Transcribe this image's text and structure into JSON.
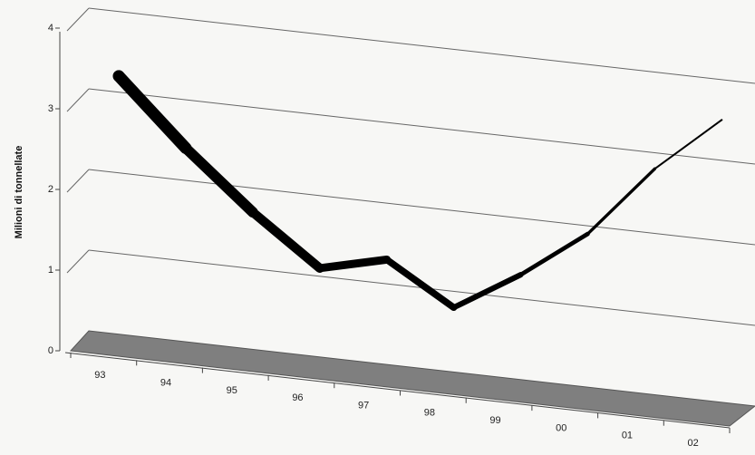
{
  "chart_data": {
    "type": "line",
    "style": "3d-perspective",
    "ylabel": "Milioni di tonnellate",
    "xlabel": "",
    "ylim": [
      0,
      4
    ],
    "yticks": [
      "0",
      "1",
      "2",
      "3",
      "4"
    ],
    "categories": [
      "93",
      "94",
      "95",
      "96",
      "97",
      "98",
      "99",
      "00",
      "01",
      "02"
    ],
    "values": [
      3.2,
      2.4,
      1.7,
      1.1,
      1.3,
      0.8,
      1.3,
      1.9,
      2.8,
      3.5
    ],
    "line_thickness_trend": "thick-to-thin",
    "grid": true,
    "colors": {
      "line": "#000000",
      "floor": "#7f7f7f",
      "gridline": "#666666",
      "axis": "#444444",
      "background": "#f7f7f5"
    }
  }
}
